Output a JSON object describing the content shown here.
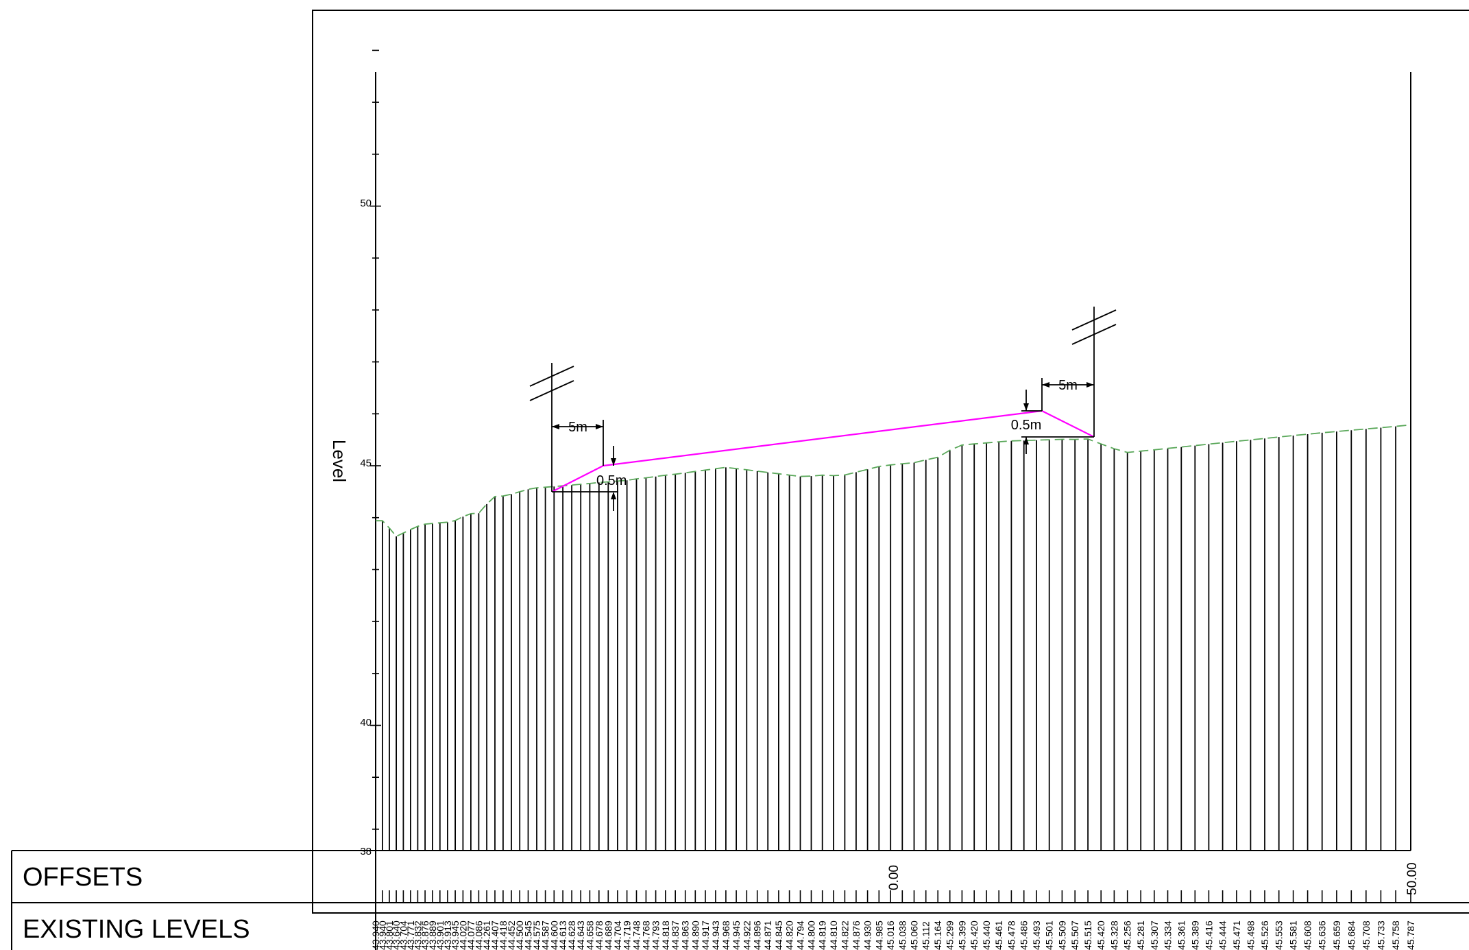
{
  "axis": {
    "title": "Level",
    "y_ticks": [
      "50",
      "45",
      "40",
      "38"
    ]
  },
  "table": {
    "offsets_label": "OFFSETS",
    "existing_levels_label": "EXISTING LEVELS",
    "offset_values": [
      "0.00",
      "50.00"
    ],
    "existing_levels": [
      "43.940",
      "43.940",
      "43.801",
      "43.640",
      "43.704",
      "43.771",
      "43.832",
      "43.876",
      "43.889",
      "43.901",
      "43.913",
      "43.945",
      "44.020",
      "44.077",
      "44.086",
      "44.261",
      "44.407",
      "44.418",
      "44.452",
      "44.500",
      "44.545",
      "44.575",
      "44.587",
      "44.600",
      "44.613",
      "44.628",
      "44.643",
      "44.658",
      "44.678",
      "44.689",
      "44.704",
      "44.719",
      "44.748",
      "44.768",
      "44.793",
      "44.818",
      "44.837",
      "44.863",
      "44.890",
      "44.917",
      "44.943",
      "44.968",
      "44.945",
      "44.922",
      "44.896",
      "44.871",
      "44.845",
      "44.820",
      "44.794",
      "44.800",
      "44.819",
      "44.810",
      "44.822",
      "44.876",
      "44.930",
      "44.985",
      "45.016",
      "45.038",
      "45.060",
      "45.112",
      "45.164",
      "45.299",
      "45.399",
      "45.420",
      "45.440",
      "45.461",
      "45.478",
      "45.486",
      "45.493",
      "45.501",
      "45.509",
      "45.507",
      "45.515",
      "45.420",
      "45.328",
      "45.256",
      "45.281",
      "45.307",
      "45.334",
      "45.361",
      "45.389",
      "45.416",
      "45.444",
      "45.471",
      "45.498",
      "45.526",
      "45.553",
      "45.581",
      "45.608",
      "45.636",
      "45.659",
      "45.684",
      "45.708",
      "45.733",
      "45.758",
      "45.787"
    ]
  },
  "annotations": {
    "left_horizontal": "5m",
    "left_vertical": "0.5m",
    "right_horizontal": "5m",
    "right_vertical": "0.5m"
  },
  "colors": {
    "ground_line": "#5aa85a",
    "design_line": "#ff00ff",
    "ink": "#000000"
  }
}
